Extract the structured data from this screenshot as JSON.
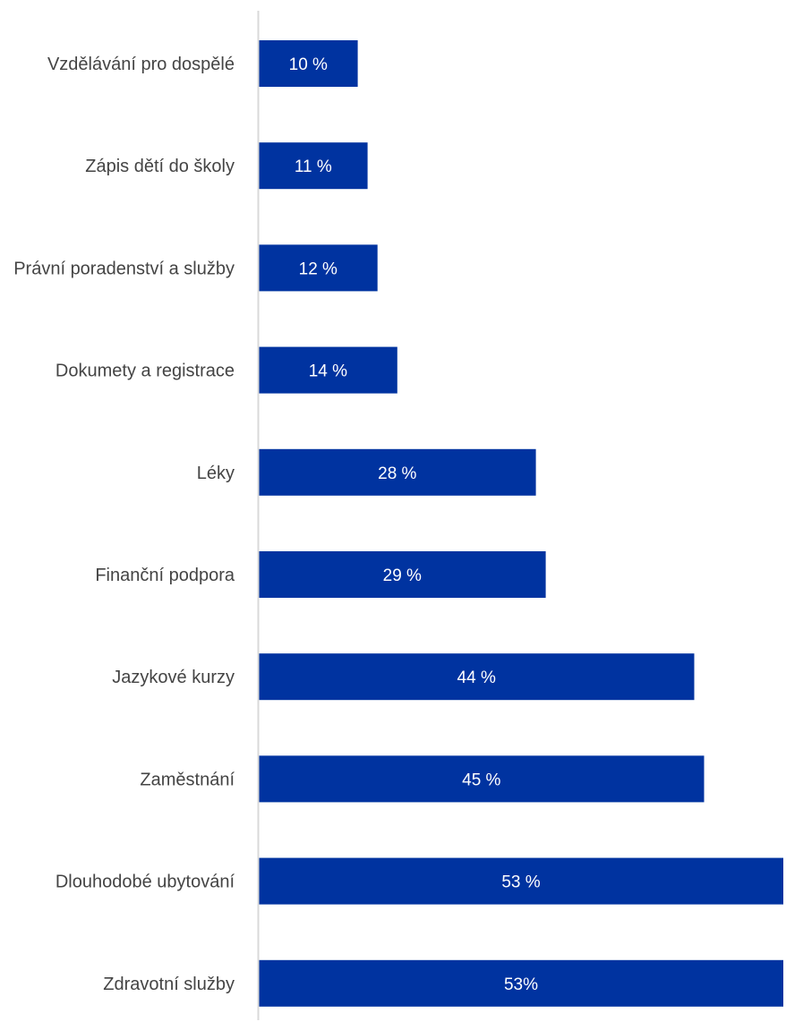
{
  "chart_data": {
    "type": "bar",
    "orientation": "horizontal",
    "categories": [
      "Vzdělávání pro dospělé",
      "Zápis dětí do školy",
      "Právní poradenství a služby",
      "Dokumety a registrace",
      "Léky",
      "Finanční podpora",
      "Jazykové kurzy",
      "Zaměstnání",
      "Dlouhodobé ubytování",
      "Zdravotní služby"
    ],
    "values": [
      10,
      11,
      12,
      14,
      28,
      29,
      44,
      45,
      53,
      53
    ],
    "data_labels": [
      "10 %",
      "11 %",
      "12 %",
      "14 %",
      "28 %",
      "29 %",
      "44 %",
      "45 %",
      "53 %",
      "53%"
    ],
    "title": "",
    "xlabel": "",
    "ylabel": "",
    "xlim": [
      0,
      53
    ],
    "grid": false,
    "legend": "none",
    "bar_color": "#0033a0",
    "axis_color": "#d9d9d9",
    "label_color": "#444444"
  }
}
